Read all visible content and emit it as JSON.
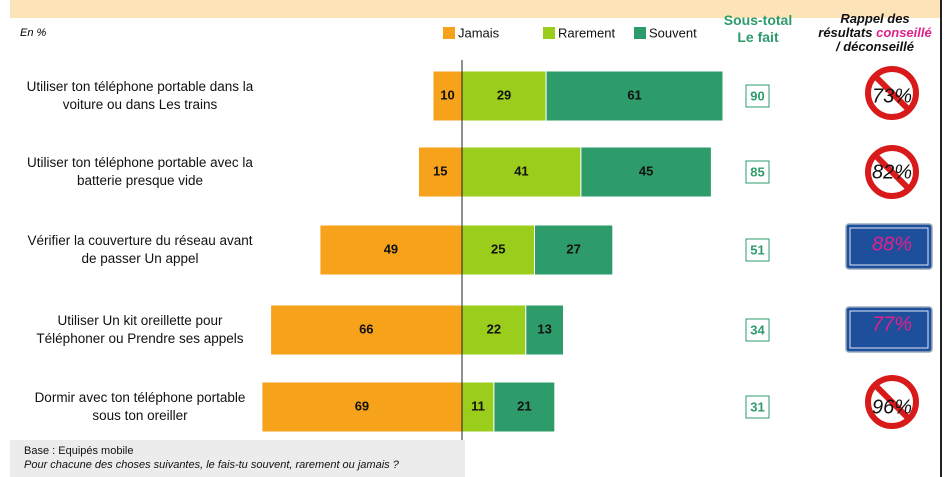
{
  "chart_data": {
    "type": "diverging_bar",
    "unit_label": "En %",
    "categories": [
      "Utiliser ton téléphone portable dans la voiture ou dans Les trains",
      "Utiliser ton téléphone portable avec la batterie presque vide",
      "Vérifier la couverture du réseau avant de passer Un appel",
      "Utiliser Un kit oreillette pour Téléphoner ou Prendre ses appels",
      "Dormir avec ton téléphone portable sous ton oreiller"
    ],
    "series": [
      {
        "name": "Jamais",
        "color": "#f7a21b",
        "values": [
          10,
          15,
          49,
          66,
          69
        ]
      },
      {
        "name": "Rarement",
        "color": "#9acd1c",
        "values": [
          29,
          41,
          25,
          22,
          11
        ]
      },
      {
        "name": "Souvent",
        "color": "#2e9b6b",
        "values": [
          61,
          45,
          27,
          13,
          21
        ]
      }
    ],
    "subtotal": {
      "title": [
        "Sous-total",
        "Le fait"
      ],
      "values": [
        90,
        85,
        51,
        34,
        31
      ],
      "color": "#2e9b6b"
    },
    "recall": {
      "title": [
        "Rappel des",
        "résultats",
        "conseillé",
        "/ déconseillé"
      ],
      "values": [
        73,
        82,
        88,
        77,
        96
      ],
      "value_labels": [
        "73%",
        "82%",
        "88%",
        "77%",
        "96%"
      ]
    },
    "notes": [
      "Base : Equipés mobile",
      "Pour chacune des choses suivantes, le fais-tu souvent, rarement ou jamais ?"
    ]
  }
}
